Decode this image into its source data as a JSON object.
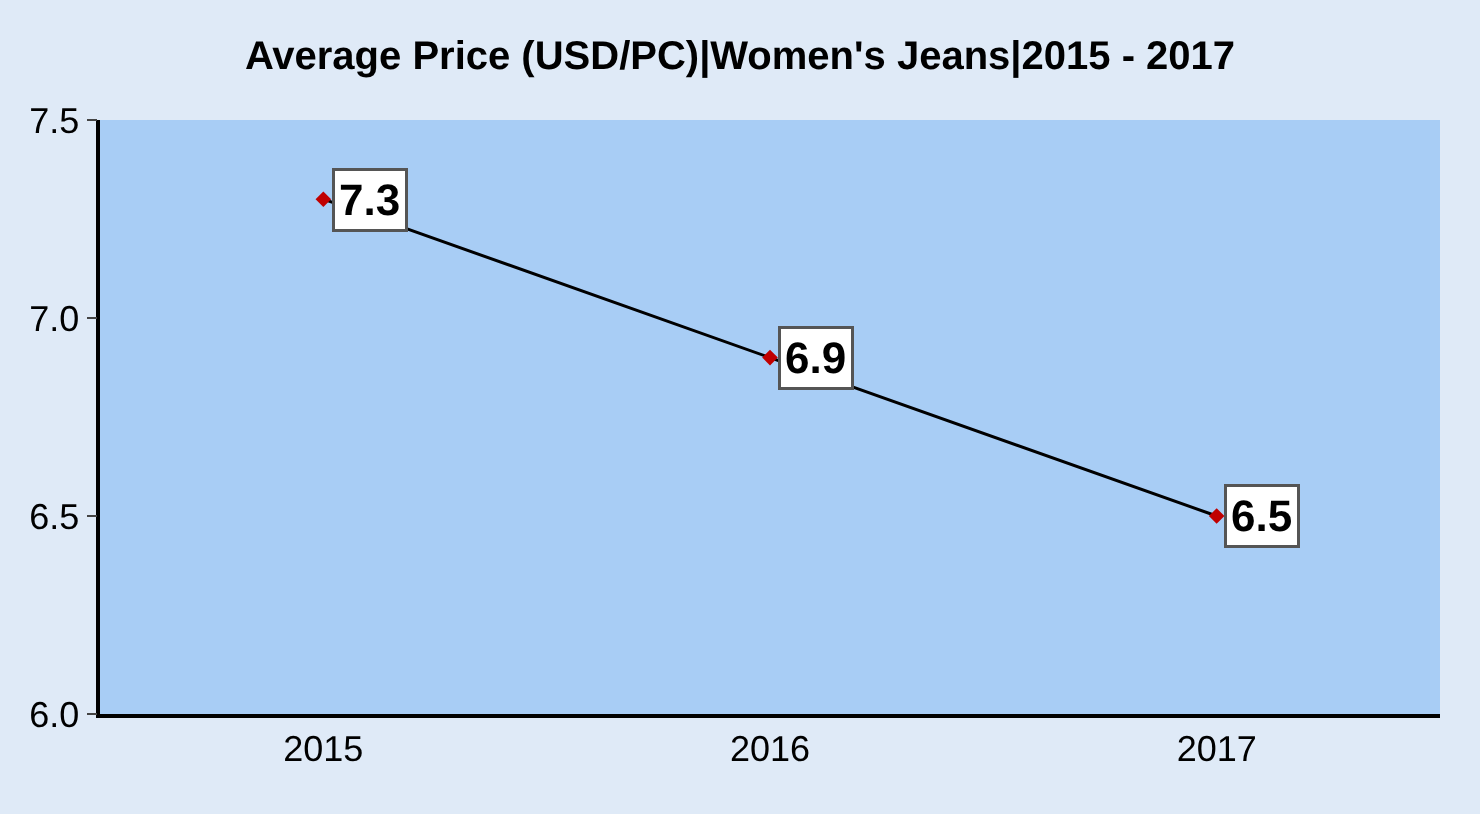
{
  "chart_data": {
    "type": "line",
    "title": "Average Price (USD/PC)|Women's Jeans|2015 - 2017",
    "categories": [
      "2015",
      "2016",
      "2017"
    ],
    "series": [
      {
        "color": "#000000",
        "values": [
          7.3,
          6.9,
          6.5
        ]
      }
    ],
    "ylim": [
      6.0,
      7.5
    ],
    "yticks": [
      {
        "value": 6.0,
        "label": "6.0"
      },
      {
        "value": 6.5,
        "label": "6.5"
      },
      {
        "value": 7.0,
        "label": "7.0"
      },
      {
        "value": 7.5,
        "label": "7.5"
      }
    ],
    "data_labels": true,
    "marker": "diamond",
    "line_style": "solid",
    "grid": false,
    "legend": false
  }
}
